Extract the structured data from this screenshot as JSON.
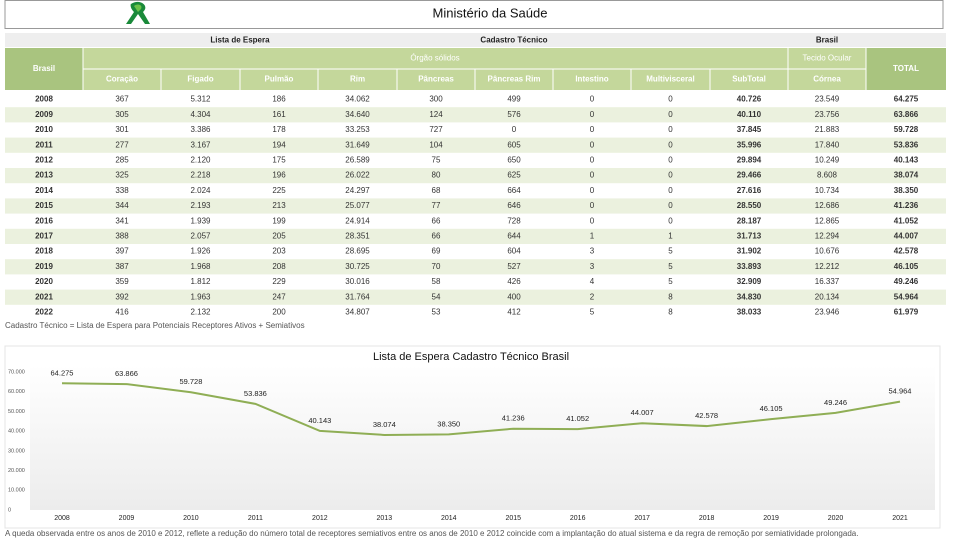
{
  "header": {
    "title": "Ministério da Saúde"
  },
  "table": {
    "groups": [
      "Lista de Espera",
      "Cadastro Técnico",
      "Brasil"
    ],
    "subgroups": [
      "Órgão sólidos",
      "Tecido Ocular"
    ],
    "row_header": "Brasil",
    "total_header": "TOTAL",
    "columns": [
      "Coração",
      "Figado",
      "Pulmão",
      "Rim",
      "Pâncreas",
      "Pâncreas Rim",
      "Intestino",
      "Multivisceral",
      "SubTotal",
      "Córnea"
    ],
    "rows": [
      [
        "2008",
        "367",
        "5.312",
        "186",
        "34.062",
        "300",
        "499",
        "0",
        "0",
        "40.726",
        "23.549",
        "64.275"
      ],
      [
        "2009",
        "305",
        "4.304",
        "161",
        "34.640",
        "124",
        "576",
        "0",
        "0",
        "40.110",
        "23.756",
        "63.866"
      ],
      [
        "2010",
        "301",
        "3.386",
        "178",
        "33.253",
        "727",
        "0",
        "0",
        "0",
        "37.845",
        "21.883",
        "59.728"
      ],
      [
        "2011",
        "277",
        "3.167",
        "194",
        "31.649",
        "104",
        "605",
        "0",
        "0",
        "35.996",
        "17.840",
        "53.836"
      ],
      [
        "2012",
        "285",
        "2.120",
        "175",
        "26.589",
        "75",
        "650",
        "0",
        "0",
        "29.894",
        "10.249",
        "40.143"
      ],
      [
        "2013",
        "325",
        "2.218",
        "196",
        "26.022",
        "80",
        "625",
        "0",
        "0",
        "29.466",
        "8.608",
        "38.074"
      ],
      [
        "2014",
        "338",
        "2.024",
        "225",
        "24.297",
        "68",
        "664",
        "0",
        "0",
        "27.616",
        "10.734",
        "38.350"
      ],
      [
        "2015",
        "344",
        "2.193",
        "213",
        "25.077",
        "77",
        "646",
        "0",
        "0",
        "28.550",
        "12.686",
        "41.236"
      ],
      [
        "2016",
        "341",
        "1.939",
        "199",
        "24.914",
        "66",
        "728",
        "0",
        "0",
        "28.187",
        "12.865",
        "41.052"
      ],
      [
        "2017",
        "388",
        "2.057",
        "205",
        "28.351",
        "66",
        "644",
        "1",
        "1",
        "31.713",
        "12.294",
        "44.007"
      ],
      [
        "2018",
        "397",
        "1.926",
        "203",
        "28.695",
        "69",
        "604",
        "3",
        "5",
        "31.902",
        "10.676",
        "42.578"
      ],
      [
        "2019",
        "387",
        "1.968",
        "208",
        "30.725",
        "70",
        "527",
        "3",
        "5",
        "33.893",
        "12.212",
        "46.105"
      ],
      [
        "2020",
        "359",
        "1.812",
        "229",
        "30.016",
        "58",
        "426",
        "4",
        "5",
        "32.909",
        "16.337",
        "49.246"
      ],
      [
        "2021",
        "392",
        "1.963",
        "247",
        "31.764",
        "54",
        "400",
        "2",
        "8",
        "34.830",
        "20.134",
        "54.964"
      ],
      [
        "2022",
        "416",
        "2.132",
        "200",
        "34.807",
        "53",
        "412",
        "5",
        "8",
        "38.033",
        "23.946",
        "61.979"
      ]
    ],
    "note": "Cadastro Técnico = Lista de Espera para Potenciais Receptores Ativos + Semiativos"
  },
  "chart_data": {
    "type": "line",
    "title": "Lista de Espera Cadastro Técnico Brasil",
    "categories": [
      "2008",
      "2009",
      "2010",
      "2011",
      "2012",
      "2013",
      "2014",
      "2015",
      "2016",
      "2017",
      "2018",
      "2019",
      "2020",
      "2021"
    ],
    "series": [
      {
        "name": "TOTAL",
        "color": "#8fae55",
        "values": [
          64275,
          63866,
          59728,
          53836,
          40143,
          38074,
          38350,
          41236,
          41052,
          44007,
          42578,
          46105,
          49246,
          54964
        ],
        "value_labels": [
          "64.275",
          "63.866",
          "59.728",
          "53.836",
          "40.143",
          "38.074",
          "38.350",
          "41.236",
          "41.052",
          "44.007",
          "42.578",
          "46.105",
          "49.246",
          "54.964"
        ]
      }
    ],
    "ylim": [
      0,
      70000
    ],
    "yticks": [
      {
        "value": 0,
        "label": "0"
      },
      {
        "value": 10000,
        "label": "10.000"
      },
      {
        "value": 20000,
        "label": "20.000"
      },
      {
        "value": 30000,
        "label": "30.000"
      },
      {
        "value": 40000,
        "label": "40.000"
      },
      {
        "value": 50000,
        "label": "50.000"
      },
      {
        "value": 60000,
        "label": "60.000"
      },
      {
        "value": 70000,
        "label": "70.000"
      }
    ],
    "grid": false
  },
  "footer": {
    "text": "A queda observada entre os anos de 2010 e 2012, reflete a redução do número total de receptores semiativos entre os anos de 2010 e 2012 coincide com a implantação do atual sistema e da regra de remoção por semiatividade prolongada."
  }
}
